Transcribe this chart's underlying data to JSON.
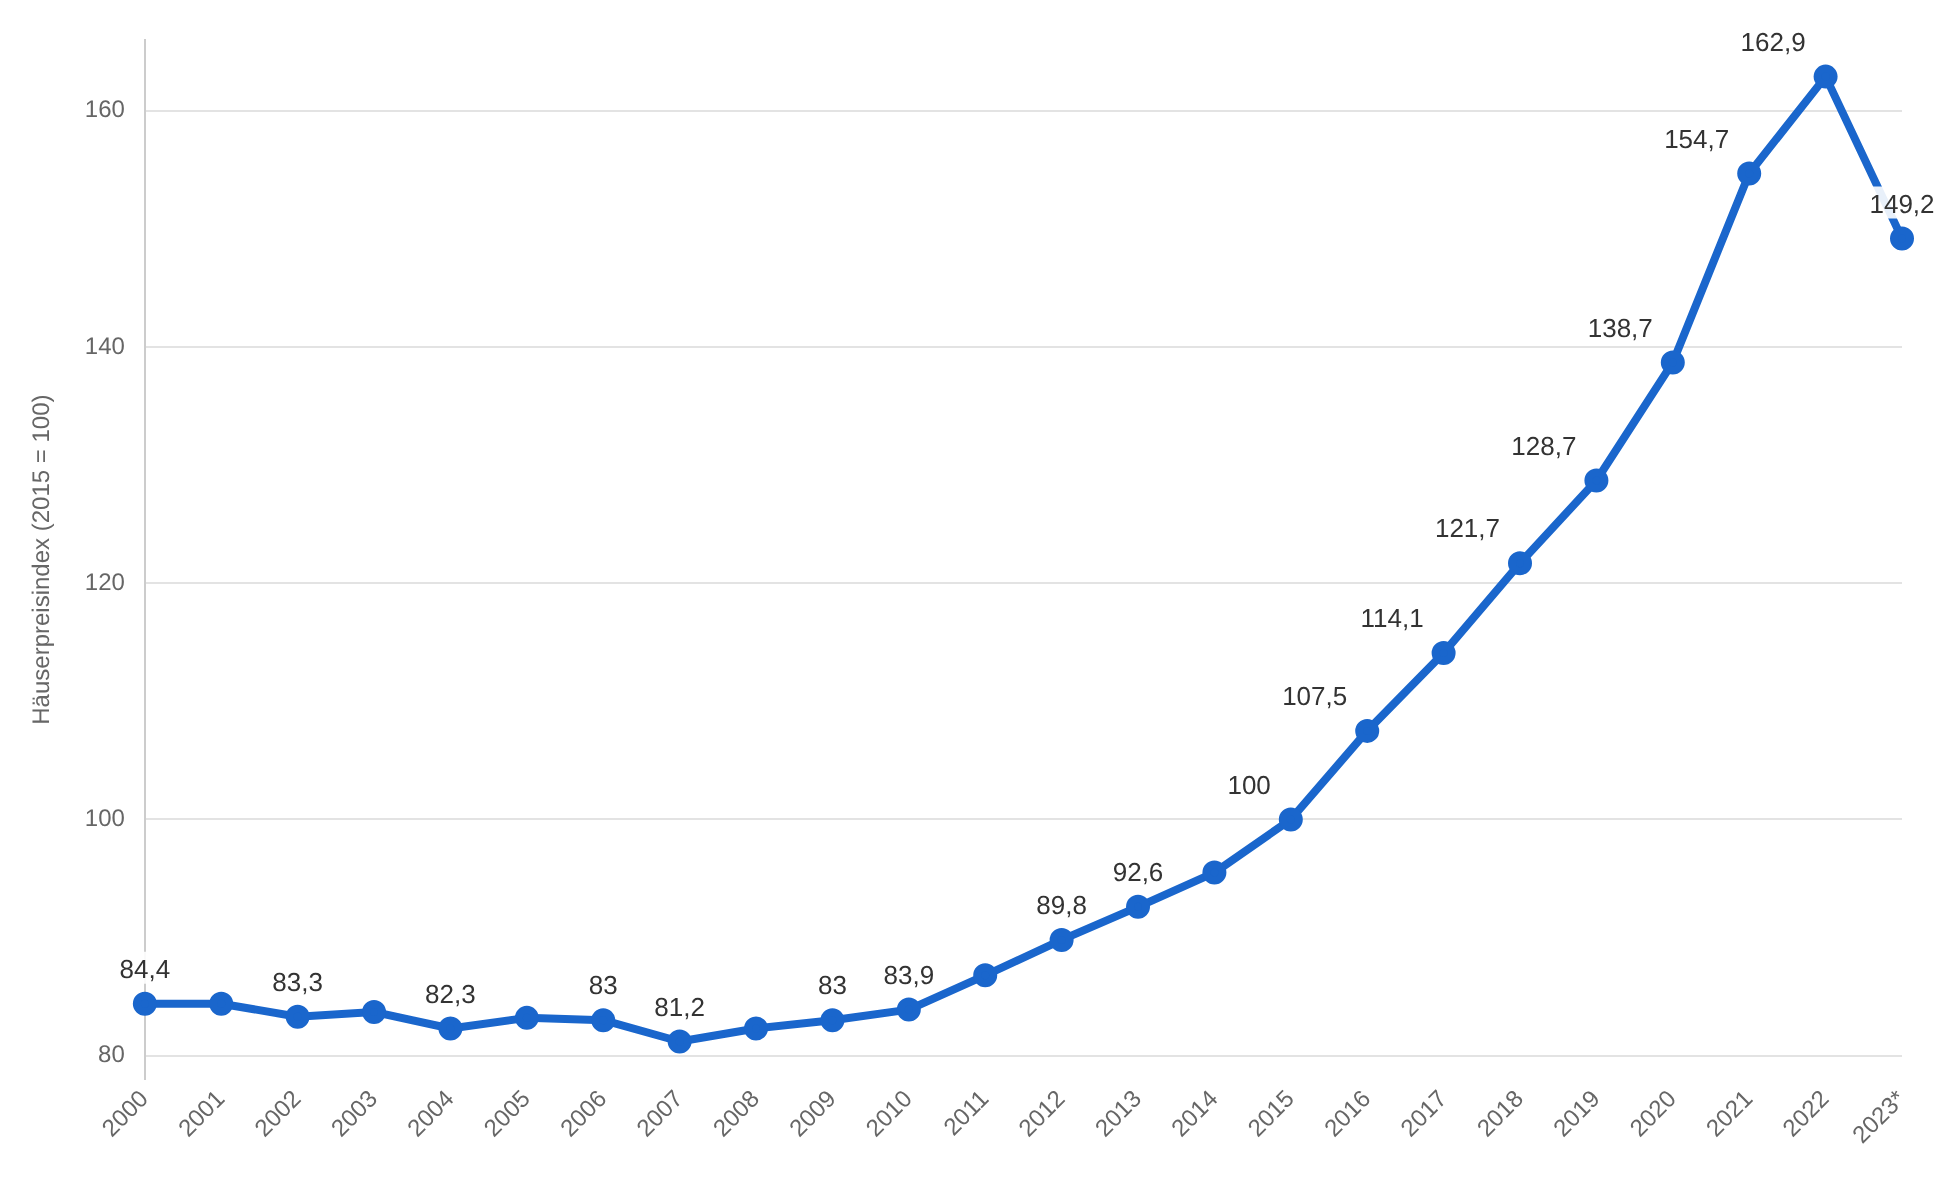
{
  "chart_data": {
    "type": "line",
    "ylabel": "Häuserpreisindex (2015 = 100)",
    "categories": [
      "2000",
      "2001",
      "2002",
      "2003",
      "2004",
      "2005",
      "2006",
      "2007",
      "2008",
      "2009",
      "2010",
      "2011",
      "2012",
      "2013",
      "2014",
      "2015",
      "2016",
      "2017",
      "2018",
      "2019",
      "2020",
      "2021",
      "2022",
      "2023*"
    ],
    "series": [
      {
        "color": "#1a66cc",
        "values": [
          84.4,
          84.4,
          83.3,
          83.7,
          82.3,
          83.2,
          83,
          81.2,
          82.3,
          83,
          83.9,
          86.8,
          89.8,
          92.6,
          95.5,
          100,
          107.5,
          114.1,
          121.7,
          128.7,
          138.7,
          154.7,
          162.9,
          149.2
        ],
        "value_labels": [
          "84,4",
          null,
          "83,3",
          null,
          "82,3",
          null,
          "83",
          "81,2",
          null,
          "83",
          "83,9",
          null,
          "89,8",
          "92,6",
          null,
          "100",
          "107,5",
          "114,1",
          "121,7",
          "128,7",
          "138,7",
          "154,7",
          "162,9",
          "149,2"
        ]
      }
    ],
    "ylim": [
      78,
      166
    ],
    "yticks": [
      80,
      100,
      120,
      140,
      160
    ],
    "grid": "y",
    "legend": false,
    "marker": "circle",
    "line_style": "solid"
  }
}
